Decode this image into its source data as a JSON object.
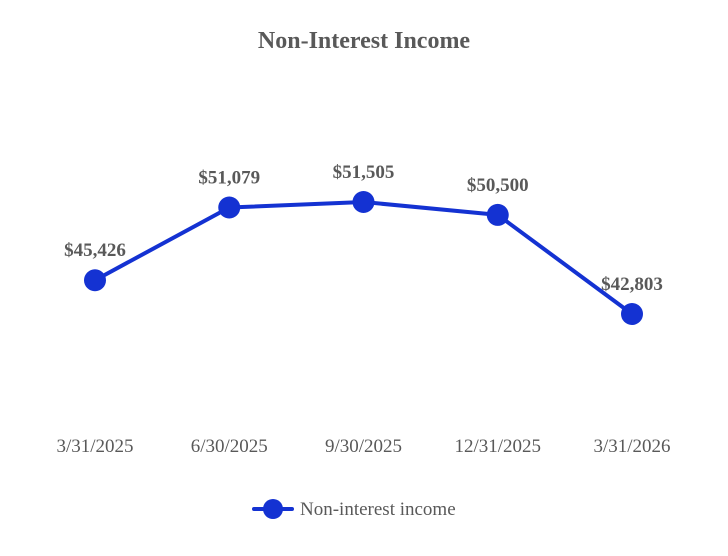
{
  "chart_data": {
    "type": "line",
    "title": "Non-Interest Income",
    "xlabel": "",
    "ylabel": "",
    "categories": [
      "3/31/2025",
      "6/30/2025",
      "9/30/2025",
      "12/31/2025",
      "3/31/2026"
    ],
    "series": [
      {
        "name": "Non-interest income",
        "values": [
          45426,
          51079,
          51505,
          50500,
          42803
        ],
        "labels": [
          "$45,426",
          "$51,079",
          "$51,505",
          "$50,500",
          "$42,803"
        ],
        "color": "#1432d2"
      }
    ],
    "grid": false,
    "legend_position": "bottom"
  }
}
